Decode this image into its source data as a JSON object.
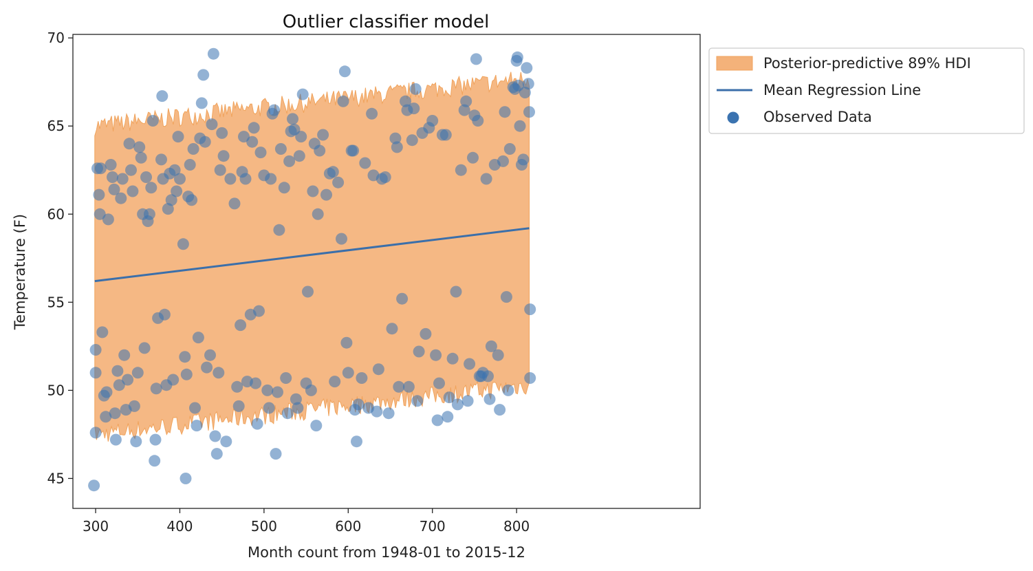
{
  "chart_data": {
    "type": "scatter",
    "title": "Outlier classifier model",
    "xlabel": "Month count from 1948-01 to 2015-12",
    "ylabel": "Temperature (F)",
    "xlim": [
      273,
      1018
    ],
    "ylim": [
      43.3,
      70.2
    ],
    "xticks": [
      300,
      400,
      500,
      600,
      700,
      800
    ],
    "yticks": [
      45,
      50,
      55,
      60,
      65,
      70
    ],
    "grid": false,
    "legend_position": "outside-top-right",
    "colors": {
      "band": "#f4b27a",
      "band_edge": "#f0a35c",
      "line": "#3b6faa",
      "points": "#3b73b0"
    },
    "band": {
      "name": "Posterior-predictive 89% HDI",
      "x_start": 299,
      "x_end": 815,
      "lower_start": 47.5,
      "lower_end": 50.3,
      "upper_start": 65.0,
      "upper_end": 67.7
    },
    "regression_line": {
      "name": "Mean Regression Line",
      "x": [
        299,
        815
      ],
      "y": [
        56.2,
        59.2
      ]
    },
    "legend_items": [
      "Posterior-predictive 89% HDI",
      "Mean Regression Line",
      "Observed Data"
    ],
    "series": [
      {
        "name": "Observed Data",
        "points": [
          [
            298,
            44.6
          ],
          [
            300,
            47.6
          ],
          [
            300,
            51.0
          ],
          [
            300,
            52.3
          ],
          [
            302,
            62.6
          ],
          [
            304,
            61.1
          ],
          [
            305,
            60.0
          ],
          [
            306,
            62.6
          ],
          [
            308,
            53.3
          ],
          [
            310,
            49.7
          ],
          [
            312,
            48.5
          ],
          [
            313,
            49.9
          ],
          [
            315,
            59.7
          ],
          [
            318,
            62.8
          ],
          [
            320,
            62.1
          ],
          [
            322,
            61.4
          ],
          [
            323,
            48.7
          ],
          [
            324,
            47.2
          ],
          [
            326,
            51.1
          ],
          [
            328,
            50.3
          ],
          [
            330,
            60.9
          ],
          [
            332,
            62.0
          ],
          [
            334,
            52.0
          ],
          [
            336,
            48.9
          ],
          [
            338,
            50.6
          ],
          [
            340,
            64.0
          ],
          [
            342,
            62.5
          ],
          [
            344,
            61.3
          ],
          [
            346,
            49.1
          ],
          [
            348,
            47.1
          ],
          [
            350,
            51.0
          ],
          [
            352,
            63.8
          ],
          [
            354,
            63.2
          ],
          [
            356,
            60.0
          ],
          [
            358,
            52.4
          ],
          [
            360,
            62.1
          ],
          [
            362,
            59.6
          ],
          [
            364,
            60.0
          ],
          [
            366,
            61.5
          ],
          [
            368,
            65.3
          ],
          [
            370,
            46.0
          ],
          [
            371,
            47.2
          ],
          [
            372,
            50.1
          ],
          [
            374,
            54.1
          ],
          [
            378,
            63.1
          ],
          [
            379,
            66.7
          ],
          [
            380,
            62.0
          ],
          [
            382,
            54.3
          ],
          [
            384,
            50.3
          ],
          [
            386,
            60.3
          ],
          [
            388,
            62.3
          ],
          [
            390,
            60.8
          ],
          [
            392,
            50.6
          ],
          [
            394,
            62.5
          ],
          [
            396,
            61.3
          ],
          [
            398,
            64.4
          ],
          [
            400,
            62.0
          ],
          [
            404,
            58.3
          ],
          [
            406,
            51.9
          ],
          [
            407,
            45.0
          ],
          [
            408,
            50.9
          ],
          [
            410,
            61.0
          ],
          [
            412,
            62.8
          ],
          [
            414,
            60.8
          ],
          [
            416,
            63.7
          ],
          [
            418,
            49.0
          ],
          [
            420,
            48.0
          ],
          [
            422,
            53.0
          ],
          [
            424,
            64.3
          ],
          [
            426,
            66.3
          ],
          [
            428,
            67.9
          ],
          [
            430,
            64.1
          ],
          [
            432,
            51.3
          ],
          [
            436,
            52.0
          ],
          [
            438,
            65.1
          ],
          [
            440,
            69.1
          ],
          [
            442,
            47.4
          ],
          [
            444,
            46.4
          ],
          [
            446,
            51.0
          ],
          [
            448,
            62.5
          ],
          [
            450,
            64.6
          ],
          [
            452,
            63.3
          ],
          [
            455,
            47.1
          ],
          [
            460,
            62.0
          ],
          [
            465,
            60.6
          ],
          [
            468,
            50.2
          ],
          [
            470,
            49.1
          ],
          [
            472,
            53.7
          ],
          [
            474,
            62.4
          ],
          [
            476,
            64.4
          ],
          [
            478,
            62.0
          ],
          [
            480,
            50.5
          ],
          [
            484,
            54.3
          ],
          [
            486,
            64.1
          ],
          [
            488,
            64.9
          ],
          [
            490,
            50.4
          ],
          [
            492,
            48.1
          ],
          [
            494,
            54.5
          ],
          [
            496,
            63.5
          ],
          [
            500,
            62.2
          ],
          [
            504,
            50.0
          ],
          [
            506,
            49.0
          ],
          [
            508,
            62.0
          ],
          [
            510,
            65.7
          ],
          [
            512,
            65.9
          ],
          [
            514,
            46.4
          ],
          [
            516,
            49.9
          ],
          [
            518,
            59.1
          ],
          [
            520,
            63.7
          ],
          [
            524,
            61.5
          ],
          [
            526,
            50.7
          ],
          [
            528,
            48.7
          ],
          [
            530,
            63.0
          ],
          [
            532,
            64.7
          ],
          [
            534,
            65.4
          ],
          [
            536,
            64.8
          ],
          [
            538,
            49.5
          ],
          [
            540,
            49.0
          ],
          [
            542,
            63.3
          ],
          [
            544,
            64.4
          ],
          [
            546,
            66.8
          ],
          [
            550,
            50.4
          ],
          [
            552,
            55.6
          ],
          [
            556,
            50.0
          ],
          [
            558,
            61.3
          ],
          [
            560,
            64.0
          ],
          [
            562,
            48.0
          ],
          [
            564,
            60.0
          ],
          [
            566,
            63.6
          ],
          [
            570,
            64.5
          ],
          [
            574,
            61.1
          ],
          [
            578,
            62.3
          ],
          [
            582,
            62.4
          ],
          [
            584,
            50.5
          ],
          [
            588,
            61.8
          ],
          [
            592,
            58.6
          ],
          [
            594,
            66.4
          ],
          [
            596,
            68.1
          ],
          [
            598,
            52.7
          ],
          [
            600,
            51.0
          ],
          [
            604,
            63.6
          ],
          [
            606,
            63.6
          ],
          [
            608,
            48.9
          ],
          [
            610,
            47.1
          ],
          [
            612,
            49.2
          ],
          [
            616,
            50.7
          ],
          [
            620,
            62.9
          ],
          [
            624,
            49.0
          ],
          [
            628,
            65.7
          ],
          [
            630,
            62.2
          ],
          [
            634,
            48.8
          ],
          [
            636,
            51.2
          ],
          [
            640,
            62.0
          ],
          [
            644,
            62.1
          ],
          [
            648,
            48.7
          ],
          [
            652,
            53.5
          ],
          [
            656,
            64.3
          ],
          [
            658,
            63.8
          ],
          [
            660,
            50.2
          ],
          [
            664,
            55.2
          ],
          [
            668,
            66.4
          ],
          [
            670,
            65.9
          ],
          [
            672,
            50.2
          ],
          [
            676,
            64.2
          ],
          [
            678,
            66.0
          ],
          [
            680,
            67.1
          ],
          [
            682,
            49.4
          ],
          [
            684,
            52.2
          ],
          [
            688,
            64.6
          ],
          [
            692,
            53.2
          ],
          [
            696,
            64.9
          ],
          [
            700,
            65.3
          ],
          [
            704,
            52.0
          ],
          [
            706,
            48.3
          ],
          [
            708,
            50.4
          ],
          [
            712,
            64.5
          ],
          [
            716,
            64.5
          ],
          [
            718,
            48.5
          ],
          [
            720,
            49.6
          ],
          [
            724,
            51.8
          ],
          [
            728,
            55.6
          ],
          [
            730,
            49.2
          ],
          [
            734,
            62.5
          ],
          [
            738,
            65.9
          ],
          [
            740,
            66.4
          ],
          [
            742,
            49.4
          ],
          [
            744,
            51.5
          ],
          [
            748,
            63.2
          ],
          [
            750,
            65.6
          ],
          [
            752,
            68.8
          ],
          [
            754,
            65.3
          ],
          [
            756,
            50.8
          ],
          [
            758,
            50.8
          ],
          [
            760,
            51.0
          ],
          [
            764,
            62.0
          ],
          [
            766,
            50.8
          ],
          [
            768,
            49.5
          ],
          [
            770,
            52.5
          ],
          [
            774,
            62.8
          ],
          [
            778,
            52.0
          ],
          [
            780,
            48.9
          ],
          [
            784,
            63.0
          ],
          [
            786,
            65.8
          ],
          [
            788,
            55.3
          ],
          [
            790,
            50.0
          ],
          [
            792,
            63.7
          ],
          [
            796,
            67.2
          ],
          [
            798,
            67.1
          ],
          [
            800,
            68.7
          ],
          [
            801,
            68.9
          ],
          [
            802,
            67.3
          ],
          [
            804,
            65.0
          ],
          [
            806,
            62.8
          ],
          [
            808,
            63.1
          ],
          [
            810,
            66.9
          ],
          [
            812,
            68.3
          ],
          [
            814,
            67.4
          ],
          [
            815,
            65.8
          ],
          [
            816,
            50.7
          ],
          [
            816,
            54.6
          ]
        ]
      }
    ]
  }
}
